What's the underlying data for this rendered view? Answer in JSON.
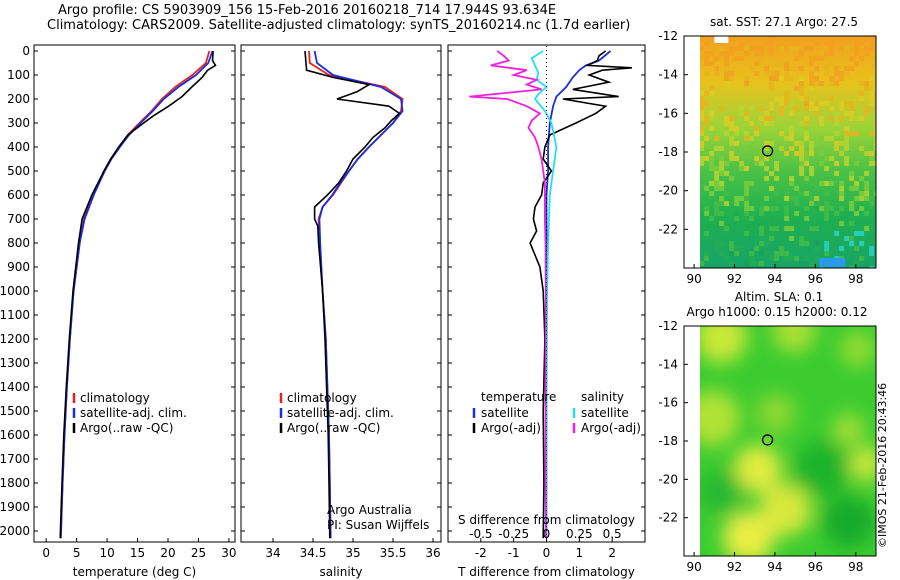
{
  "header": {
    "line1": "Argo profile: CS 5903909_156 15-Feb-2016 20160218_714 17.944S 93.634E",
    "line2": "Climatology: CARS2009. Satellite-adjusted climatology: synTS_20160214.nc (1.7d earlier)"
  },
  "colors": {
    "climatology": "#e8221b",
    "satellite": "#1a2ee0",
    "argo": "#000000",
    "sal_sat": "#22e0ee",
    "sal_argo": "#ee22dd"
  },
  "chart_data": [
    {
      "type": "line",
      "xlabel": "temperature (deg C)",
      "ylim": [
        2050,
        0
      ],
      "xlim": [
        -2,
        31
      ],
      "xticks": [
        0,
        5,
        10,
        15,
        20,
        25,
        30
      ],
      "yticks": [
        0,
        100,
        200,
        300,
        400,
        500,
        600,
        700,
        800,
        900,
        1000,
        1100,
        1200,
        1300,
        1400,
        1500,
        1600,
        1700,
        1800,
        1900,
        2000
      ],
      "legend": [
        "climatology",
        "satellite-adj. clim.",
        "Argo(..raw -QC)"
      ],
      "series": [
        {
          "name": "climatology",
          "color": "#e8221b",
          "depth": [
            0,
            50,
            100,
            150,
            200,
            250,
            300,
            350,
            400,
            450,
            500,
            600,
            700,
            800,
            1000,
            1200,
            1400,
            1600,
            1800,
            2030
          ],
          "values": [
            26.8,
            26.2,
            24.0,
            21.2,
            19.0,
            17.3,
            15.3,
            13.4,
            12.0,
            10.6,
            9.5,
            7.7,
            6.2,
            5.5,
            4.5,
            3.9,
            3.4,
            3.0,
            2.7,
            2.4
          ]
        },
        {
          "name": "satellite-adj. clim.",
          "color": "#1a2ee0",
          "depth": [
            0,
            50,
            100,
            150,
            200,
            250,
            300,
            350,
            400,
            450,
            500,
            600,
            700,
            800,
            1000,
            1200,
            1400,
            1600,
            1800,
            2030
          ],
          "values": [
            27.3,
            26.6,
            24.6,
            21.7,
            19.3,
            17.5,
            15.5,
            13.6,
            12.1,
            10.7,
            9.6,
            7.8,
            6.3,
            5.5,
            4.5,
            3.9,
            3.4,
            3.0,
            2.7,
            2.4
          ]
        },
        {
          "name": "Argo(..raw -QC)",
          "color": "#000000",
          "depth": [
            0,
            40,
            60,
            80,
            110,
            150,
            190,
            230,
            270,
            300,
            350,
            400,
            450,
            500,
            600,
            700,
            800,
            1000,
            1200,
            1400,
            1600,
            1800,
            2030
          ],
          "values": [
            27.4,
            27.3,
            27.8,
            26.5,
            25.6,
            23.9,
            22.3,
            20.1,
            17.6,
            16.0,
            13.4,
            11.9,
            10.6,
            9.5,
            7.5,
            5.9,
            5.3,
            4.4,
            3.8,
            3.3,
            2.9,
            2.6,
            2.3
          ]
        }
      ]
    },
    {
      "type": "line",
      "xlabel": "salinity",
      "ylim": [
        2050,
        0
      ],
      "xlim": [
        33.6,
        36.1
      ],
      "xticks": [
        34,
        34.5,
        35,
        35.5,
        36
      ],
      "xticklabels": [
        "34",
        "34.5",
        "35",
        "35.5",
        "36"
      ],
      "legend": [
        "climatology",
        "satellite-adj. clim.",
        "Argo(..raw -QC)"
      ],
      "annotation": [
        "Argo Australia",
        "PI: Susan Wijffels"
      ],
      "series": [
        {
          "name": "climatology",
          "color": "#e8221b",
          "depth": [
            0,
            50,
            100,
            150,
            200,
            250,
            300,
            350,
            400,
            450,
            500,
            550,
            600,
            650,
            700,
            800,
            1000,
            1200,
            1400,
            1600,
            1800,
            2030
          ],
          "values": [
            34.45,
            34.46,
            34.7,
            35.4,
            35.62,
            35.6,
            35.5,
            35.35,
            35.2,
            35.06,
            34.95,
            34.85,
            34.75,
            34.62,
            34.57,
            34.58,
            34.62,
            34.66,
            34.68,
            34.7,
            34.71,
            34.72
          ]
        },
        {
          "name": "satellite-adj. clim.",
          "color": "#1a2ee0",
          "depth": [
            0,
            50,
            100,
            150,
            200,
            250,
            300,
            350,
            400,
            450,
            500,
            550,
            600,
            650,
            700,
            800,
            1000,
            1200,
            1400,
            1600,
            1800,
            2030
          ],
          "values": [
            34.52,
            34.55,
            34.75,
            35.35,
            35.6,
            35.62,
            35.5,
            35.35,
            35.2,
            35.06,
            34.95,
            34.84,
            34.74,
            34.62,
            34.58,
            34.59,
            34.62,
            34.66,
            34.68,
            34.7,
            34.71,
            34.72
          ]
        },
        {
          "name": "Argo(..raw -QC)",
          "color": "#000000",
          "depth": [
            0,
            40,
            80,
            110,
            140,
            170,
            200,
            230,
            260,
            290,
            320,
            360,
            400,
            450,
            500,
            550,
            600,
            650,
            700,
            730,
            800,
            1000,
            1200,
            1400,
            1600,
            1800,
            2030
          ],
          "values": [
            34.4,
            34.41,
            34.42,
            34.75,
            35.2,
            35.05,
            34.8,
            35.45,
            35.58,
            35.48,
            35.4,
            35.25,
            35.15,
            35.0,
            34.92,
            34.82,
            34.68,
            34.52,
            34.52,
            34.56,
            34.57,
            34.62,
            34.65,
            34.67,
            34.69,
            34.7,
            34.71
          ]
        }
      ]
    },
    {
      "type": "line",
      "xlabel": "T difference from climatology",
      "xlim": [
        -3.0,
        3.0
      ],
      "xticks": [
        -2,
        -1,
        0,
        1,
        2
      ],
      "top_axis_label": "S difference from climatology",
      "top_ticklabels": [
        "-0.5",
        "-0.25",
        "0",
        "0.25",
        "0.5"
      ],
      "ylim": [
        2050,
        0
      ],
      "legend_headers": [
        "temperature",
        "salinity"
      ],
      "legend": [
        "satellite",
        "Argo(-adj)",
        "satellite",
        "Argo(-adj)"
      ],
      "series": [
        {
          "name": "satellite",
          "group": "temperature",
          "color": "#1a2ee0",
          "depth": [
            0,
            40,
            60,
            80,
            110,
            150,
            190,
            230,
            300,
            400,
            500,
            600,
            800,
            1000,
            1500,
            2030
          ],
          "values": [
            1.95,
            1.6,
            1.2,
            1.0,
            0.8,
            0.6,
            0.3,
            0.2,
            0.1,
            0.05,
            0.05,
            0.0,
            0.0,
            0.0,
            0.0,
            0.0
          ]
        },
        {
          "name": "Argo(-adj)",
          "group": "temperature",
          "color": "#000000",
          "depth": [
            0,
            20,
            40,
            60,
            70,
            80,
            100,
            130,
            160,
            190,
            200,
            230,
            260,
            280,
            300,
            350,
            400,
            450,
            500,
            550,
            600,
            650,
            700,
            750,
            800,
            900,
            1000,
            1200,
            1500,
            1800,
            2030
          ],
          "values": [
            1.8,
            1.6,
            1.55,
            1.25,
            2.6,
            1.7,
            1.3,
            1.9,
            0.8,
            2.2,
            0.5,
            1.8,
            1.5,
            1.2,
            0.9,
            0.1,
            -0.05,
            -0.1,
            0.15,
            -0.1,
            -0.15,
            -0.35,
            -0.4,
            -0.3,
            -0.5,
            -0.2,
            -0.1,
            -0.05,
            -0.1,
            -0.08,
            -0.1
          ]
        },
        {
          "name": "satellite",
          "group": "salinity",
          "color": "#22e0ee",
          "depth": [
            0,
            30,
            60,
            90,
            120,
            150,
            180,
            200,
            250,
            300,
            400,
            500,
            600,
            800,
            1000,
            1500,
            2030
          ],
          "values": [
            -0.1,
            -0.45,
            -0.35,
            -0.25,
            -0.3,
            0.0,
            -0.25,
            -0.35,
            -0.05,
            0.15,
            0.3,
            0.2,
            0.1,
            0.05,
            0.02,
            0.0,
            0.0
          ]
        },
        {
          "name": "Argo(-adj)",
          "group": "salinity",
          "color": "#ee22dd",
          "depth": [
            0,
            20,
            40,
            60,
            80,
            100,
            120,
            140,
            160,
            190,
            200,
            230,
            260,
            290,
            320,
            360,
            400,
            450,
            500,
            550,
            600,
            700,
            800,
            1000,
            1500,
            2030
          ],
          "values": [
            -1.5,
            -1.3,
            -1.15,
            -1.7,
            -0.6,
            -1.0,
            -0.3,
            -0.6,
            -0.15,
            -2.35,
            -1.2,
            -0.6,
            -0.2,
            -0.45,
            -0.55,
            -0.35,
            -0.25,
            -0.15,
            -0.1,
            -0.05,
            -0.05,
            -0.05,
            -0.03,
            -0.02,
            -0.03,
            -0.02
          ]
        }
      ]
    },
    {
      "type": "heatmap",
      "title": "sat. SST: 27.1  Argo: 27.5",
      "xlim": [
        89.5,
        99
      ],
      "ylim": [
        -24,
        -12
      ],
      "xticks": [
        90,
        92,
        94,
        96,
        98
      ],
      "yticks": [
        -12,
        -14,
        -16,
        -18,
        -20,
        -22
      ],
      "marker": {
        "lon": 93.634,
        "lat": -17.944
      }
    },
    {
      "type": "heatmap",
      "title_line1": "Altim. SLA: 0.1",
      "title_line2": "Argo h1000: 0.15 h2000: 0.12",
      "xlim": [
        89.5,
        99
      ],
      "ylim": [
        -24,
        -12
      ],
      "xticks": [
        90,
        92,
        94,
        96,
        98
      ],
      "yticks": [
        -12,
        -14,
        -16,
        -18,
        -20,
        -22
      ],
      "marker": {
        "lon": 93.634,
        "lat": -17.944
      }
    }
  ],
  "watermark": "©IMOS 21-Feb-2016 20:43:46"
}
